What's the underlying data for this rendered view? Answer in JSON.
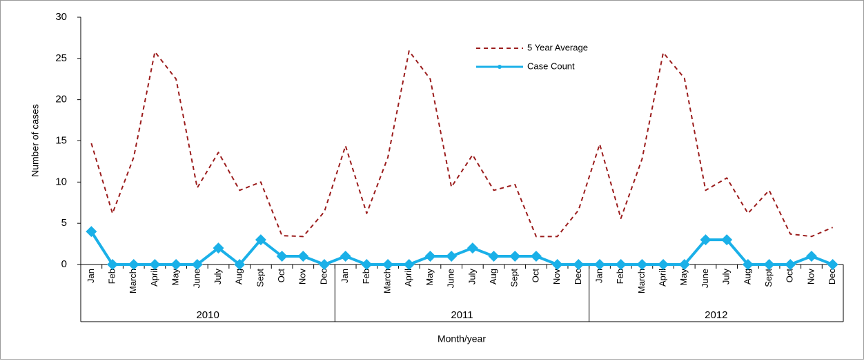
{
  "chart_data": {
    "type": "line",
    "y_label": "Number of cases",
    "x_label": "Month/year",
    "categories": [
      "Jan",
      "Feb",
      "March",
      "April",
      "May",
      "June",
      "July",
      "Aug",
      "Sept",
      "Oct",
      "Nov",
      "Dec",
      "Jan",
      "Feb",
      "March",
      "April",
      "May",
      "June",
      "July",
      "Aug",
      "Sept",
      "Oct",
      "Nov",
      "Dec",
      "Jan",
      "Feb",
      "March",
      "April",
      "May",
      "June",
      "July",
      "Aug",
      "Sept",
      "Oct",
      "Nov",
      "Dec"
    ],
    "groups": [
      "2010",
      "2011",
      "2012"
    ],
    "series": [
      {
        "name": "5 Year Average",
        "color": "#9b1c1c",
        "dashed": true,
        "values": [
          14.7,
          6.2,
          13,
          25.8,
          22.5,
          9.3,
          13.6,
          9,
          10,
          3.5,
          3.4,
          6.4,
          14.4,
          6.2,
          13,
          25.9,
          22.5,
          9.4,
          13.3,
          9,
          9.7,
          3.4,
          3.4,
          6.6,
          14.6,
          5.6,
          12.8,
          25.7,
          22.6,
          9,
          10.5,
          6.2,
          9,
          3.7,
          3.4,
          4.5
        ]
      },
      {
        "name": "Case Count",
        "color": "#1ab0e8",
        "markers": true,
        "values": [
          4,
          0,
          0,
          0,
          0,
          0,
          2,
          0,
          3,
          1,
          1,
          0,
          1,
          0,
          0,
          0,
          1,
          1,
          2,
          1,
          1,
          1,
          0,
          0,
          0,
          0,
          0,
          0,
          0,
          3,
          3,
          0,
          0,
          0,
          1,
          0
        ]
      }
    ],
    "ylim": [
      0,
      30
    ],
    "yticks": [
      0,
      5,
      10,
      15,
      20,
      25,
      30
    ],
    "grid": false,
    "legend": "upper right"
  }
}
